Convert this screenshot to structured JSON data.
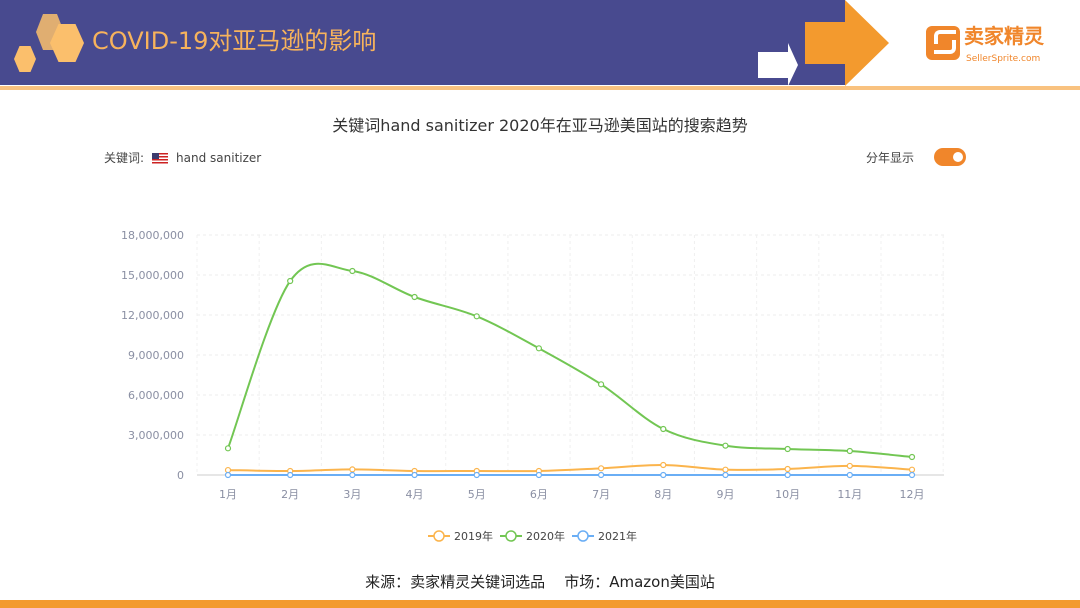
{
  "header": {
    "title": "COVID-19对亚马逊的影响",
    "logo_name": "卖家精灵",
    "logo_url_text": "SellerSprite.com"
  },
  "controls": {
    "keyword_label": "关键词:",
    "keyword": "hand sanitizer",
    "by_year_label": "分年显示",
    "by_year_on": true
  },
  "source": "来源：卖家精灵关键词选品    市场：Amazon美国站",
  "colors": {
    "header": "#484a8f",
    "accent": "#f0862b",
    "s2019": "#fbb44c",
    "s2020": "#72c653",
    "s2021": "#6aaef5"
  },
  "chart_data": {
    "type": "line",
    "title": "关键词hand sanitizer 2020年在亚马逊美国站的搜索趋势",
    "categories": [
      "1月",
      "2月",
      "3月",
      "4月",
      "5月",
      "6月",
      "7月",
      "8月",
      "9月",
      "10月",
      "11月",
      "12月"
    ],
    "yticks": [
      "0",
      "3,000,000",
      "6,000,000",
      "9,000,000",
      "12,000,000",
      "15,000,000",
      "18,000,000"
    ],
    "ylim": [
      0,
      18000000
    ],
    "legend_position": "bottom",
    "series": [
      {
        "name": "2019年",
        "color": "#fbb44c",
        "values": [
          370000,
          300000,
          420000,
          300000,
          300000,
          300000,
          500000,
          750000,
          400000,
          450000,
          680000,
          400000
        ]
      },
      {
        "name": "2020年",
        "color": "#72c653",
        "values": [
          2000000,
          14550000,
          15300000,
          13350000,
          11900000,
          9500000,
          6800000,
          3450000,
          2200000,
          1950000,
          1800000,
          1350000
        ]
      },
      {
        "name": "2021年",
        "color": "#6aaef5",
        "values": [
          0,
          0,
          0,
          0,
          0,
          0,
          0,
          0,
          0,
          0,
          0,
          0
        ]
      }
    ]
  }
}
